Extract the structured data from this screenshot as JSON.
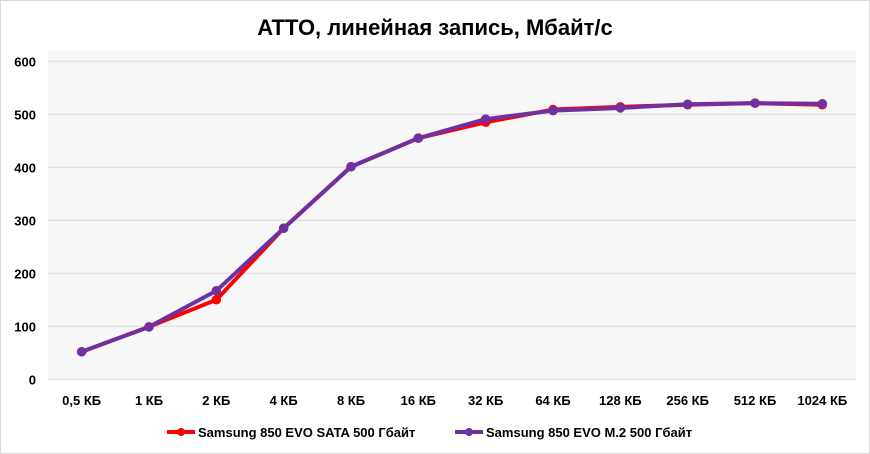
{
  "chart_data": {
    "type": "line",
    "title": "ATTO, линейная запись, Мбайт/с",
    "xlabel": "",
    "ylabel": "",
    "categories": [
      "0,5 КБ",
      "1 КБ",
      "2 КБ",
      "4 КБ",
      "8 КБ",
      "16 КБ",
      "32 КБ",
      "64 КБ",
      "128 КБ",
      "256 КБ",
      "512 КБ",
      "1024 КБ"
    ],
    "ylim": [
      0,
      600
    ],
    "yticks": [
      "0",
      "100",
      "200",
      "300",
      "400",
      "500",
      "600"
    ],
    "grid": true,
    "legend_position": "bottom",
    "series": [
      {
        "name": "Samsung 850 EVO SATA 500 Гбайт",
        "color": "#ff0000",
        "values": [
          52,
          99,
          150,
          285,
          401,
          455,
          485,
          509,
          514,
          518,
          521,
          518
        ]
      },
      {
        "name": "Samsung 850 EVO M.2 500 Гбайт",
        "color": "#7030a0",
        "values": [
          52,
          99,
          167,
          285,
          401,
          455,
          491,
          507,
          512,
          519,
          521,
          520
        ]
      }
    ]
  }
}
